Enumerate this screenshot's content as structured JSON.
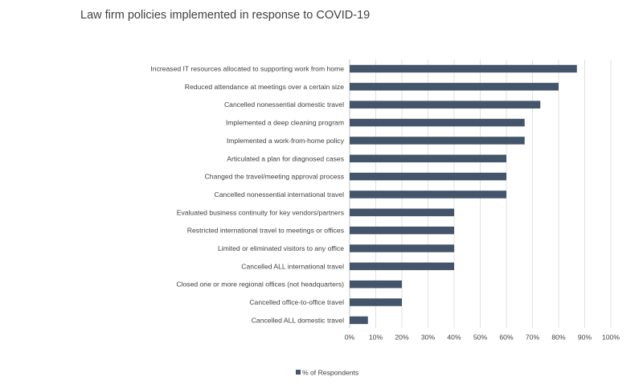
{
  "chart_data": {
    "type": "bar",
    "orientation": "horizontal",
    "title": "Law firm policies implemented in response to COVID-19",
    "categories": [
      "Increased IT resources allocated to supporting work from home",
      "Reduced attendance at meetings over a certain size",
      "Cancelled nonessential domestic travel",
      "Implemented a deep cleaning program",
      "Implemented a work-from-home policy",
      "Articulated a plan for diagnosed cases",
      "Changed the travel/meeting approval process",
      "Cancelled nonessential international travel",
      "Evaluated business continuity for key vendors/partners",
      "Restricted international travel to meetings or offices",
      "Limited or eliminated visitors to any office",
      "Cancelled ALL international travel",
      "Closed one or more regional offices (not headquarters)",
      "Cancelled office-to-office travel",
      "Cancelled ALL domestic travel"
    ],
    "series": [
      {
        "name": "% of Respondents",
        "values": [
          87,
          80,
          73,
          67,
          67,
          60,
          60,
          60,
          40,
          40,
          40,
          40,
          20,
          20,
          7
        ]
      }
    ],
    "xlim": [
      0,
      100
    ],
    "ticks": [
      "0%",
      "10%",
      "20%",
      "30%",
      "40%",
      "50%",
      "60%",
      "70%",
      "80%",
      "90%",
      "100%"
    ],
    "grid": "vertical",
    "legend": "bottom",
    "colors": {
      "bar": "#44546a",
      "grid": "#d9d9d9",
      "text": "#404040"
    }
  }
}
